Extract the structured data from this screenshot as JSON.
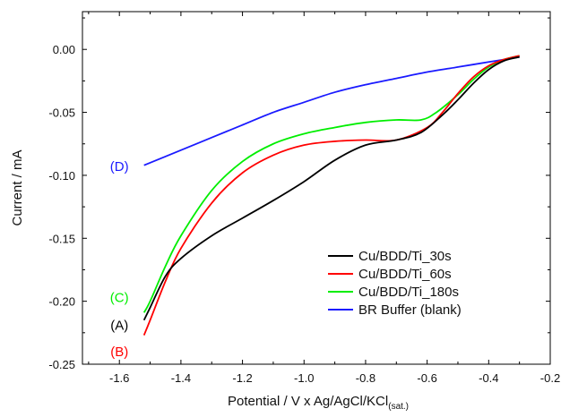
{
  "chart_data": {
    "type": "line",
    "xlabel": "Potential / V x Ag/AgCl/KCl",
    "xlabel_subscript": "(sat.)",
    "ylabel": "Current / mA",
    "xlim": [
      -1.72,
      -0.2
    ],
    "ylim": [
      -0.25,
      0.03
    ],
    "xticks": [
      -1.6,
      -1.4,
      -1.2,
      -1.0,
      -0.8,
      -0.6,
      -0.4,
      -0.2
    ],
    "xtick_labels": [
      "-1.6",
      "-1.4",
      "-1.2",
      "-1.0",
      "-0.8",
      "-0.6",
      "-0.4",
      "-0.2"
    ],
    "yticks": [
      0.0,
      -0.05,
      -0.1,
      -0.15,
      -0.2,
      -0.25
    ],
    "ytick_labels": [
      "0.00",
      "-0.05",
      "-0.10",
      "-0.15",
      "-0.20",
      "-0.25"
    ],
    "grid": false,
    "legend_position": "lower-right",
    "series": [
      {
        "name": "Cu/BDD/Ti_30s",
        "color": "#000000",
        "points": [
          [
            -1.52,
            -0.215
          ],
          [
            -1.5,
            -0.205
          ],
          [
            -1.45,
            -0.18
          ],
          [
            -1.4,
            -0.166
          ],
          [
            -1.3,
            -0.148
          ],
          [
            -1.2,
            -0.134
          ],
          [
            -1.1,
            -0.12
          ],
          [
            -1.0,
            -0.105
          ],
          [
            -0.9,
            -0.088
          ],
          [
            -0.8,
            -0.076
          ],
          [
            -0.7,
            -0.072
          ],
          [
            -0.62,
            -0.066
          ],
          [
            -0.55,
            -0.052
          ],
          [
            -0.5,
            -0.04
          ],
          [
            -0.45,
            -0.027
          ],
          [
            -0.4,
            -0.016
          ],
          [
            -0.35,
            -0.009
          ],
          [
            -0.3,
            -0.006
          ]
        ]
      },
      {
        "name": "Cu/BDD/Ti_60s",
        "color": "#ff0000",
        "points": [
          [
            -1.52,
            -0.227
          ],
          [
            -1.5,
            -0.215
          ],
          [
            -1.45,
            -0.184
          ],
          [
            -1.4,
            -0.158
          ],
          [
            -1.3,
            -0.122
          ],
          [
            -1.2,
            -0.098
          ],
          [
            -1.1,
            -0.084
          ],
          [
            -1.0,
            -0.076
          ],
          [
            -0.9,
            -0.073
          ],
          [
            -0.8,
            -0.072
          ],
          [
            -0.7,
            -0.072
          ],
          [
            -0.6,
            -0.062
          ],
          [
            -0.55,
            -0.05
          ],
          [
            -0.5,
            -0.035
          ],
          [
            -0.45,
            -0.022
          ],
          [
            -0.4,
            -0.013
          ],
          [
            -0.35,
            -0.008
          ],
          [
            -0.3,
            -0.005
          ]
        ]
      },
      {
        "name": "Cu/BDD/Ti_180s",
        "color": "#00ee00",
        "points": [
          [
            -1.52,
            -0.209
          ],
          [
            -1.5,
            -0.2
          ],
          [
            -1.45,
            -0.172
          ],
          [
            -1.4,
            -0.148
          ],
          [
            -1.3,
            -0.112
          ],
          [
            -1.2,
            -0.089
          ],
          [
            -1.1,
            -0.075
          ],
          [
            -1.0,
            -0.067
          ],
          [
            -0.9,
            -0.062
          ],
          [
            -0.8,
            -0.058
          ],
          [
            -0.7,
            -0.056
          ],
          [
            -0.62,
            -0.056
          ],
          [
            -0.57,
            -0.05
          ],
          [
            -0.5,
            -0.036
          ],
          [
            -0.45,
            -0.024
          ],
          [
            -0.4,
            -0.014
          ],
          [
            -0.35,
            -0.008
          ],
          [
            -0.3,
            -0.005
          ]
        ]
      },
      {
        "name": "BR Buffer (blank)",
        "color": "#1a1aff",
        "points": [
          [
            -1.52,
            -0.092
          ],
          [
            -1.4,
            -0.08
          ],
          [
            -1.3,
            -0.07
          ],
          [
            -1.2,
            -0.06
          ],
          [
            -1.1,
            -0.05
          ],
          [
            -1.0,
            -0.042
          ],
          [
            -0.9,
            -0.034
          ],
          [
            -0.8,
            -0.028
          ],
          [
            -0.7,
            -0.023
          ],
          [
            -0.6,
            -0.018
          ],
          [
            -0.5,
            -0.014
          ],
          [
            -0.4,
            -0.01
          ],
          [
            -0.3,
            -0.006
          ]
        ]
      }
    ],
    "annotations": [
      {
        "text": "(D)",
        "x": -1.6,
        "y": -0.093,
        "color": "#1a1aff"
      },
      {
        "text": "(C)",
        "x": -1.6,
        "y": -0.197,
        "color": "#00ee00"
      },
      {
        "text": "(A)",
        "x": -1.6,
        "y": -0.219,
        "color": "#000000"
      },
      {
        "text": "(B)",
        "x": -1.6,
        "y": -0.24,
        "color": "#ff0000"
      }
    ]
  }
}
